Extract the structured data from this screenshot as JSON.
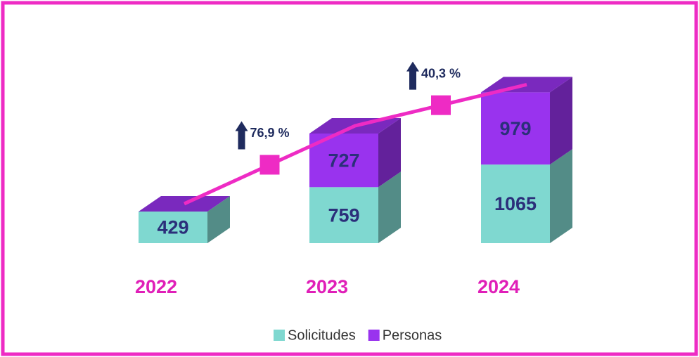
{
  "chart_data": {
    "type": "bar3d_stacked",
    "categories": [
      "2022",
      "2023",
      "2024"
    ],
    "series": [
      {
        "name": "Solicitudes",
        "color": "#7fd8d0",
        "values": [
          429,
          759,
          1065
        ]
      },
      {
        "name": "Personas",
        "color": "#9933ee",
        "values": [
          null,
          727,
          979
        ]
      }
    ],
    "annotations": [
      "76,9 %",
      "40,3 %"
    ],
    "line_color": "#ee2bc4",
    "legend": "bottom"
  }
}
